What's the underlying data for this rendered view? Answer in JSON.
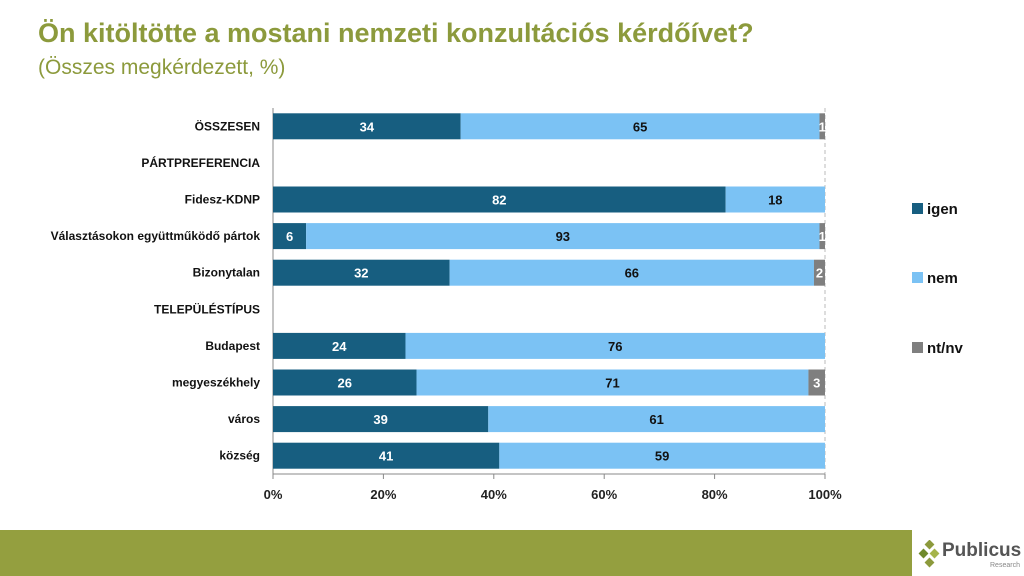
{
  "title": "Ön kitöltötte a mostani nemzeti konzultációs kérdőívet?",
  "subtitle": "(Összes megkérdezett, %)",
  "logo": {
    "name": "Publicus",
    "sub": "Research"
  },
  "chart_data": {
    "type": "bar",
    "stacked": true,
    "orientation": "horizontal",
    "categories": [
      "ÖSSZESEN",
      "PÁRTPREFERENCIA",
      "Fidesz-KDNP",
      "Választásokon együttműködő pártok",
      "Bizonytalan",
      "TELEPÜLÉSTÍPUS",
      "Budapest",
      "megyeszékhely",
      "város",
      "község"
    ],
    "series": [
      {
        "name": "igen",
        "color": "#175e80",
        "values": [
          34,
          null,
          82,
          6,
          32,
          null,
          24,
          26,
          39,
          41
        ]
      },
      {
        "name": "nem",
        "color": "#7bc2f4",
        "values": [
          65,
          null,
          18,
          93,
          66,
          null,
          76,
          71,
          61,
          59
        ]
      },
      {
        "name": "nt/nv",
        "color": "#7f7f7f",
        "values": [
          1,
          null,
          0,
          1,
          2,
          null,
          0,
          3,
          0,
          0
        ]
      }
    ],
    "xlim": [
      0,
      100
    ],
    "xticks": [
      "0%",
      "20%",
      "40%",
      "60%",
      "80%",
      "100%"
    ],
    "legend": "right"
  }
}
